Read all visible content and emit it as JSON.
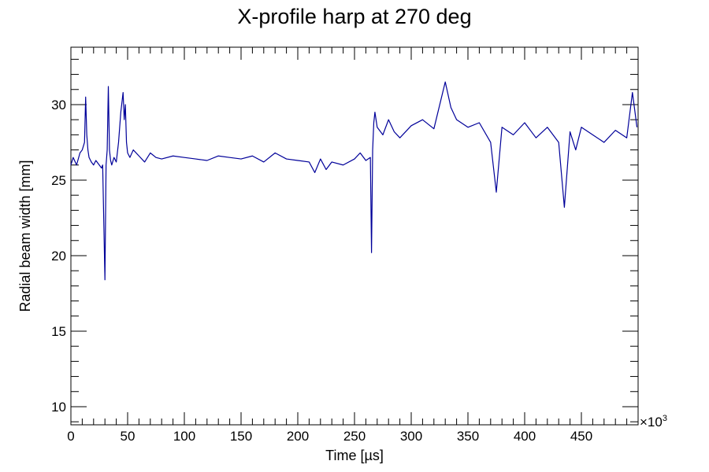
{
  "chart_data": {
    "type": "line",
    "title": "X-profile harp at 270 deg",
    "xlabel": "Time [µs]",
    "ylabel": "Radial beam width [mm]",
    "x_multiplier_label": "×10",
    "x_multiplier_exponent": "3",
    "xlim": [
      0,
      500
    ],
    "ylim": [
      8.8,
      33.8
    ],
    "x_ticks": [
      "0",
      "50",
      "100",
      "150",
      "200",
      "250",
      "300",
      "350",
      "400",
      "450"
    ],
    "y_ticks": [
      "10",
      "15",
      "20",
      "25",
      "30"
    ],
    "grid": false,
    "legend": "none",
    "line_color": "#000099",
    "series": [
      {
        "x": [
          0,
          2,
          5,
          8,
          10,
          12,
          13,
          14,
          15,
          16,
          18,
          20,
          22,
          25,
          27,
          28,
          30,
          31,
          32,
          33,
          34,
          35,
          36,
          38,
          40,
          42,
          44,
          46,
          47,
          48,
          49,
          50,
          52,
          55,
          60,
          65,
          70,
          75,
          80,
          90,
          100,
          110,
          120,
          130,
          140,
          150,
          160,
          170,
          180,
          190,
          200,
          210,
          215,
          220,
          225,
          230,
          240,
          250,
          255,
          260,
          264,
          265,
          266,
          267,
          268,
          270,
          275,
          280,
          285,
          290,
          300,
          310,
          320,
          330,
          335,
          340,
          350,
          360,
          370,
          375,
          380,
          390,
          400,
          410,
          420,
          430,
          435,
          440,
          445,
          450,
          460,
          470,
          480,
          490,
          495,
          499
        ],
        "y": [
          26.0,
          26.5,
          26.0,
          26.8,
          27.0,
          27.5,
          30.5,
          28.0,
          27.0,
          26.5,
          26.2,
          26.0,
          26.3,
          26.0,
          25.8,
          26.0,
          18.4,
          26.0,
          27.0,
          31.2,
          27.0,
          26.3,
          26.0,
          26.5,
          26.2,
          27.5,
          29.5,
          30.8,
          29.0,
          30.0,
          27.5,
          26.8,
          26.5,
          27.0,
          26.6,
          26.2,
          26.8,
          26.5,
          26.4,
          26.6,
          26.5,
          26.4,
          26.3,
          26.6,
          26.5,
          26.4,
          26.6,
          26.2,
          26.8,
          26.4,
          26.3,
          26.2,
          25.5,
          26.4,
          25.7,
          26.2,
          26.0,
          26.4,
          26.8,
          26.3,
          26.5,
          20.2,
          27.0,
          28.8,
          29.5,
          28.5,
          28.0,
          29.0,
          28.2,
          27.8,
          28.6,
          29.0,
          28.4,
          31.5,
          29.8,
          29.0,
          28.5,
          28.8,
          27.5,
          24.2,
          28.5,
          28.0,
          28.8,
          27.8,
          28.5,
          27.5,
          23.2,
          28.2,
          27.0,
          28.5,
          28.0,
          27.5,
          28.3,
          27.8,
          30.8,
          28.5
        ]
      }
    ]
  }
}
